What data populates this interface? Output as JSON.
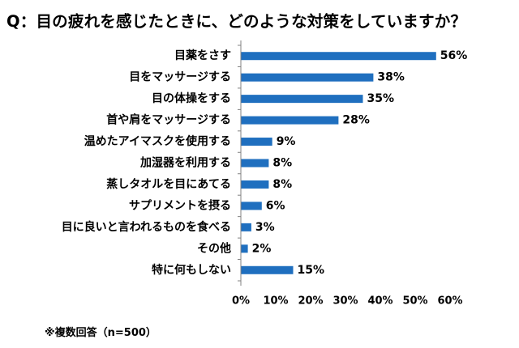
{
  "title": "Q：目の疲れを感じたときに、どのような対策をしていますか？",
  "note": "※複数回答（n=500）",
  "colors": {
    "bar": "#1f6fbf",
    "axis": "#808080",
    "text": "#000000"
  },
  "chart_data": {
    "type": "bar",
    "orientation": "horizontal",
    "title": "Q：目の疲れを感じたときに、どのような対策をしていますか？",
    "xlabel": "",
    "ylabel": "",
    "xlim": [
      0,
      60
    ],
    "ticks": [
      0,
      10,
      20,
      30,
      40,
      50,
      60
    ],
    "tick_suffix": "%",
    "grid": false,
    "categories": [
      "目薬をさす",
      "目をマッサージする",
      "目の体操をする",
      "首や肩をマッサージする",
      "温めたアイマスクを使用する",
      "加湿器を利用する",
      "蒸しタオルを目にあてる",
      "サプリメントを摂る",
      "目に良いと言われるものを食べる",
      "その他",
      "特に何もしない"
    ],
    "values": [
      56,
      38,
      35,
      28,
      9,
      8,
      8,
      6,
      3,
      2,
      15
    ],
    "value_suffix": "%"
  }
}
